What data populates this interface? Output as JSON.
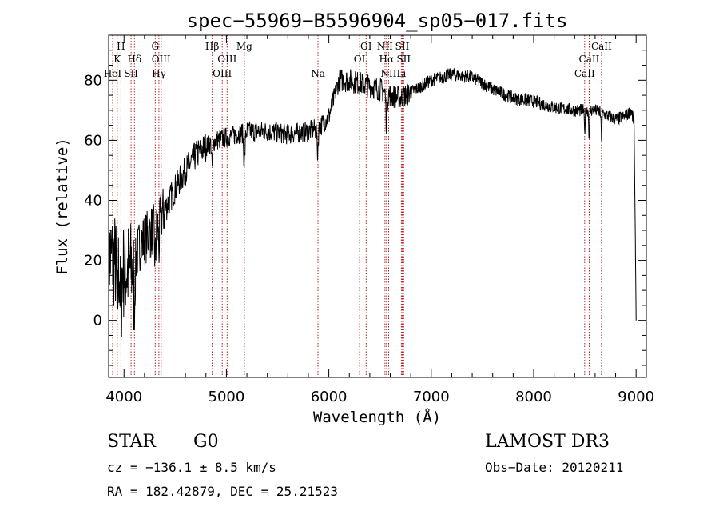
{
  "chart_data": {
    "type": "line",
    "title": "spec−55969−B5596904_sp05−017.fits",
    "xlabel": "Wavelength (Å)",
    "ylabel": "Flux (relative)",
    "xlim": [
      3850,
      9100
    ],
    "ylim": [
      -19,
      95
    ],
    "xticks": [
      {
        "value": 4000,
        "label": "4000"
      },
      {
        "value": 5000,
        "label": "5000"
      },
      {
        "value": 6000,
        "label": "6000"
      },
      {
        "value": 7000,
        "label": "7000"
      },
      {
        "value": 8000,
        "label": "8000"
      },
      {
        "value": 9000,
        "label": "9000"
      }
    ],
    "yticks": [
      {
        "value": 0,
        "label": "0"
      },
      {
        "value": 20,
        "label": "20"
      },
      {
        "value": 40,
        "label": "40"
      },
      {
        "value": 60,
        "label": "60"
      },
      {
        "value": 80,
        "label": "80"
      }
    ],
    "continuum": [
      [
        3850,
        22
      ],
      [
        3900,
        20
      ],
      [
        3950,
        18
      ],
      [
        4000,
        16
      ],
      [
        4050,
        17
      ],
      [
        4100,
        18
      ],
      [
        4150,
        25
      ],
      [
        4200,
        27
      ],
      [
        4300,
        31
      ],
      [
        4400,
        37
      ],
      [
        4500,
        44
      ],
      [
        4600,
        50
      ],
      [
        4700,
        55
      ],
      [
        4800,
        58
      ],
      [
        4900,
        60
      ],
      [
        5000,
        61
      ],
      [
        5100,
        62
      ],
      [
        5200,
        63
      ],
      [
        5400,
        63
      ],
      [
        5600,
        62
      ],
      [
        5800,
        63
      ],
      [
        5900,
        64
      ],
      [
        6000,
        68
      ],
      [
        6100,
        80
      ],
      [
        6200,
        80
      ],
      [
        6300,
        79
      ],
      [
        6400,
        78
      ],
      [
        6500,
        77
      ],
      [
        6600,
        75
      ],
      [
        6700,
        74
      ],
      [
        6800,
        76
      ],
      [
        7000,
        80
      ],
      [
        7200,
        82
      ],
      [
        7400,
        81
      ],
      [
        7600,
        77
      ],
      [
        7800,
        74
      ],
      [
        8000,
        73
      ],
      [
        8200,
        71
      ],
      [
        8400,
        70
      ],
      [
        8600,
        70
      ],
      [
        8800,
        67
      ],
      [
        8900,
        68
      ],
      [
        8950,
        70
      ],
      [
        9000,
        63
      ]
    ],
    "absorption_features": [
      {
        "center": 3934,
        "depth": 18,
        "width": 8
      },
      {
        "center": 3969,
        "depth": 16,
        "width": 8
      },
      {
        "center": 4102,
        "depth": 14,
        "width": 8
      },
      {
        "center": 4305,
        "depth": 11,
        "width": 10
      },
      {
        "center": 4341,
        "depth": 9,
        "width": 8
      },
      {
        "center": 4861,
        "depth": 8,
        "width": 8
      },
      {
        "center": 5175,
        "depth": 10,
        "width": 10
      },
      {
        "center": 5890,
        "depth": 8,
        "width": 8
      },
      {
        "center": 6563,
        "depth": 10,
        "width": 8
      },
      {
        "center": 8498,
        "depth": 7,
        "width": 6
      },
      {
        "center": 8542,
        "depth": 9,
        "width": 6
      },
      {
        "center": 8662,
        "depth": 8,
        "width": 6
      }
    ],
    "lines": [
      {
        "label": "H",
        "wavelength": 3970,
        "row": 1
      },
      {
        "label": "K",
        "wavelength": 3934,
        "row": 2
      },
      {
        "label": "HeI",
        "wavelength": 3889,
        "row": 3
      },
      {
        "label": "SII",
        "wavelength": 4069,
        "row": 3
      },
      {
        "label": "Hδ",
        "wavelength": 4102,
        "row": 2
      },
      {
        "label": "G",
        "wavelength": 4305,
        "row": 1
      },
      {
        "label": "OIII",
        "wavelength": 4363,
        "row": 2
      },
      {
        "label": "Hγ",
        "wavelength": 4341,
        "row": 3
      },
      {
        "label": "Hβ",
        "wavelength": 4861,
        "row": 1
      },
      {
        "label": "OIII",
        "wavelength": 4959,
        "row": 3
      },
      {
        "label": "OIII",
        "wavelength": 5007,
        "row": 2
      },
      {
        "label": "Mg",
        "wavelength": 5175,
        "row": 1
      },
      {
        "label": "Na",
        "wavelength": 5894,
        "row": 3
      },
      {
        "label": "OI",
        "wavelength": 6300,
        "row": 2
      },
      {
        "label": "OI",
        "wavelength": 6364,
        "row": 1
      },
      {
        "label": "NII",
        "wavelength": 6548,
        "row": 1
      },
      {
        "label": "NII",
        "wavelength": 6584,
        "row": 3
      },
      {
        "label": "Hα",
        "wavelength": 6563,
        "row": 2
      },
      {
        "label": "SII",
        "wavelength": 6717,
        "row": 1
      },
      {
        "label": "SII",
        "wavelength": 6731,
        "row": 2
      },
      {
        "label": "Li",
        "wavelength": 6708,
        "row": 3
      },
      {
        "label": "CaII",
        "wavelength": 8498,
        "row": 3
      },
      {
        "label": "CaII",
        "wavelength": 8542,
        "row": 2
      },
      {
        "label": "CaII",
        "wavelength": 8662,
        "row": 1
      }
    ]
  },
  "info": {
    "class": "STAR",
    "subclass": "G0",
    "survey": "LAMOST DR3",
    "cz": "cz = −136.1 ± 8.5 km/s",
    "obs_date": "Obs−Date: 20120211",
    "radec": "RA = 182.42879, DEC =  25.21523"
  },
  "colors": {
    "spectrum": "#000000",
    "line_markers": "#b22222",
    "axes": "#000000",
    "background": "#ffffff"
  }
}
